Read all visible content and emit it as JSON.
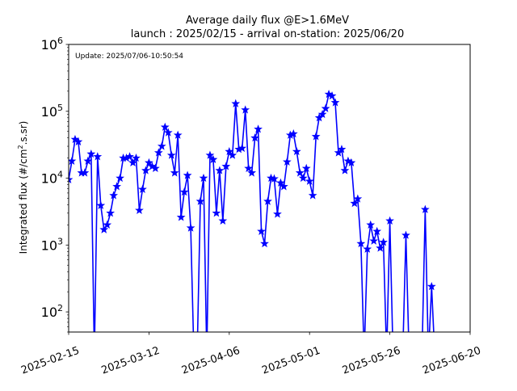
{
  "chart_data": {
    "type": "line",
    "title": "Average daily flux @E>1.6MeV",
    "subtitle": "launch : 2025/02/15 - arrival on-station: 2025/06/20",
    "annotation": "Update: 2025/07/06-10:50:54",
    "xlabel": "",
    "ylabel": "Integrated flux (#/cm².s.sr)",
    "yscale": "log",
    "xlim": [
      "2025-02-15",
      "2025-06-20"
    ],
    "ylim": [
      50,
      1000000
    ],
    "grid": false,
    "x_ticks": [
      "2025-02-15",
      "2025-03-12",
      "2025-04-06",
      "2025-05-01",
      "2025-05-26",
      "2025-06-20"
    ],
    "y_ticks": [
      {
        "value": 100,
        "base": "10",
        "exp": "2"
      },
      {
        "value": 1000,
        "base": "10",
        "exp": "3"
      },
      {
        "value": 10000,
        "base": "10",
        "exp": "4"
      },
      {
        "value": 100000,
        "base": "10",
        "exp": "5"
      },
      {
        "value": 1000000,
        "base": "10",
        "exp": "6"
      }
    ],
    "series": [
      {
        "color": "#0000ff",
        "marker": "star",
        "x": [
          "2025-02-15",
          "2025-02-16",
          "2025-02-17",
          "2025-02-18",
          "2025-02-19",
          "2025-02-20",
          "2025-02-21",
          "2025-02-22",
          "2025-02-23",
          "2025-02-24",
          "2025-02-25",
          "2025-02-26",
          "2025-02-27",
          "2025-02-28",
          "2025-03-01",
          "2025-03-02",
          "2025-03-03",
          "2025-03-04",
          "2025-03-05",
          "2025-03-06",
          "2025-03-07",
          "2025-03-08",
          "2025-03-09",
          "2025-03-10",
          "2025-03-11",
          "2025-03-12",
          "2025-03-13",
          "2025-03-14",
          "2025-03-15",
          "2025-03-16",
          "2025-03-17",
          "2025-03-18",
          "2025-03-19",
          "2025-03-20",
          "2025-03-21",
          "2025-03-22",
          "2025-03-23",
          "2025-03-24",
          "2025-03-25",
          "2025-03-26",
          "2025-03-27",
          "2025-03-28",
          "2025-03-29",
          "2025-03-30",
          "2025-03-31",
          "2025-04-01",
          "2025-04-02",
          "2025-04-03",
          "2025-04-04",
          "2025-04-05",
          "2025-04-06",
          "2025-04-07",
          "2025-04-08",
          "2025-04-09",
          "2025-04-10",
          "2025-04-11",
          "2025-04-12",
          "2025-04-13",
          "2025-04-14",
          "2025-04-15",
          "2025-04-16",
          "2025-04-17",
          "2025-04-18",
          "2025-04-19",
          "2025-04-20",
          "2025-04-21",
          "2025-04-22",
          "2025-04-23",
          "2025-04-24",
          "2025-04-25",
          "2025-04-26",
          "2025-04-27",
          "2025-04-28",
          "2025-04-29",
          "2025-04-30",
          "2025-05-01",
          "2025-05-02",
          "2025-05-03",
          "2025-05-04",
          "2025-05-05",
          "2025-05-06",
          "2025-05-07",
          "2025-05-08",
          "2025-05-09",
          "2025-05-10",
          "2025-05-11",
          "2025-05-12",
          "2025-05-13",
          "2025-05-14",
          "2025-05-15",
          "2025-05-16",
          "2025-05-17",
          "2025-05-18",
          "2025-05-19",
          "2025-05-20",
          "2025-05-21",
          "2025-05-22",
          "2025-05-23",
          "2025-05-24",
          "2025-05-25",
          "2025-05-26",
          "2025-05-27",
          "2025-05-28",
          "2025-05-29",
          "2025-05-30",
          "2025-05-31",
          "2025-06-01",
          "2025-06-02",
          "2025-06-03",
          "2025-06-04",
          "2025-06-05",
          "2025-06-06",
          "2025-06-07",
          "2025-06-08",
          "2025-06-09"
        ],
        "y": [
          9500,
          18000,
          38000,
          35000,
          12000,
          12000,
          18000,
          23000,
          null,
          21000,
          3900,
          1700,
          2000,
          3000,
          5500,
          7500,
          10000,
          20000,
          20000,
          21000,
          17000,
          20000,
          3300,
          6800,
          13000,
          17000,
          15000,
          14000,
          24000,
          30000,
          58000,
          48000,
          22000,
          12000,
          44000,
          2600,
          6200,
          11000,
          1800,
          null,
          null,
          4500,
          10000,
          null,
          22000,
          19000,
          3000,
          13000,
          2300,
          15000,
          25000,
          22000,
          130000,
          27000,
          28000,
          105000,
          14000,
          12000,
          40000,
          54000,
          1600,
          1050,
          4500,
          10000,
          9800,
          2900,
          8500,
          7500,
          17500,
          44000,
          46000,
          25000,
          12000,
          10000,
          14000,
          9000,
          5500,
          42000,
          80000,
          90000,
          110000,
          180000,
          170000,
          135000,
          24000,
          27000,
          13000,
          18000,
          17000,
          4200,
          4900,
          1050,
          null,
          870,
          2000,
          1150,
          1600,
          900,
          1100,
          null,
          2300,
          null,
          null,
          null,
          null,
          1400,
          null,
          null,
          null,
          null,
          null,
          3400,
          null,
          240,
          null
        ],
        "gaps_to_floor": [
          "2025-02-23",
          "2025-02-24",
          "2025-03-24",
          "2025-03-26",
          "2025-03-27",
          "2025-03-28",
          "2025-03-30",
          "2025-05-06",
          "2025-05-07",
          "2025-05-08",
          "2025-05-09",
          "2025-05-10",
          "2025-05-12",
          "2025-05-13",
          "2025-05-14",
          "2025-05-15",
          "2025-05-16",
          "2025-05-19",
          "2025-05-20",
          "2025-05-22",
          "2025-05-25",
          "2025-05-26",
          "2025-05-31",
          "2025-06-06",
          "2025-06-07"
        ]
      }
    ]
  }
}
